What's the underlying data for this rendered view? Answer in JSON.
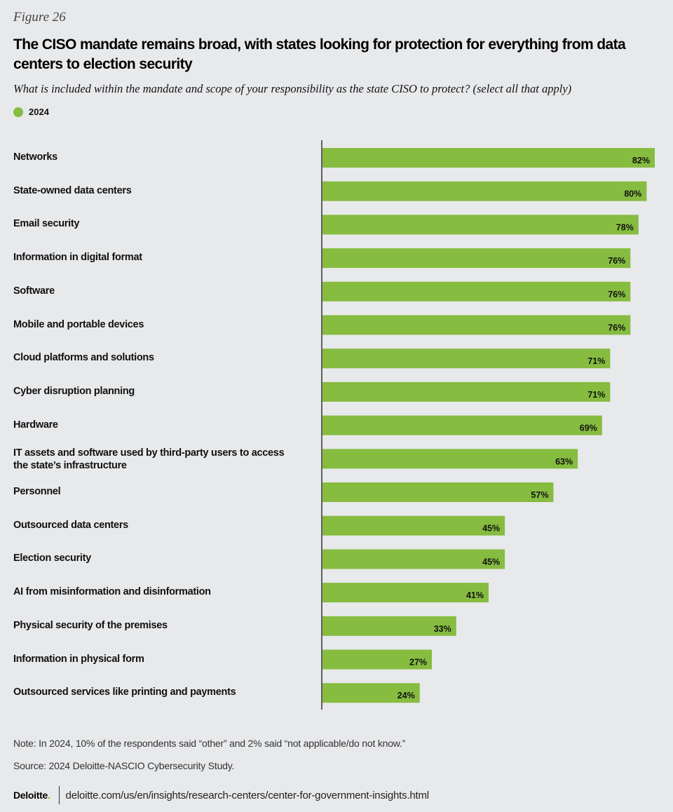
{
  "figure_label": "Figure 26",
  "footer": {
    "note": "Note: In 2024, 10% of the respondents said “other” and 2% said “not applicable/do not know.”",
    "source": "Source: 2024 Deloitte-NASCIO Cybersecurity Study.",
    "logo_text": "Deloitte",
    "logo_dot": ".",
    "url": "deloitte.com/us/en/insights/research-centers/center-for-government-insights.html"
  },
  "colors": {
    "bar": "#86bc40",
    "background": "#e8e9eb",
    "axis": "#333333"
  },
  "chart_data": {
    "type": "bar",
    "orientation": "horizontal",
    "title": "The CISO mandate remains broad, with states looking for protection for everything from data centers to election security",
    "subtitle": "What is included within the mandate and scope of your responsibility as the state CISO to protect? (select all that apply)",
    "xlabel": "",
    "ylabel": "",
    "xlim": [
      0,
      100
    ],
    "grid": false,
    "legend": {
      "placement": "top-left",
      "entries": [
        "2024"
      ]
    },
    "categories": [
      "Networks",
      "State-owned data centers",
      "Email security",
      "Information in digital format",
      "Software",
      "Mobile and portable devices",
      "Cloud platforms and solutions",
      "Cyber disruption planning",
      "Hardware",
      "IT assets and software used by third-party users to access the state’s infrastructure",
      "Personnel",
      "Outsourced data centers",
      "Election security",
      "AI from misinformation and disinformation",
      "Physical security of the premises",
      "Information in physical form",
      "Outsourced services like printing and payments"
    ],
    "series": [
      {
        "name": "2024",
        "color": "#86bc40",
        "values": [
          82,
          80,
          78,
          76,
          76,
          76,
          71,
          71,
          69,
          63,
          57,
          45,
          45,
          41,
          33,
          27,
          24
        ],
        "labels": [
          "82%",
          "80%",
          "78%",
          "76%",
          "76%",
          "76%",
          "71%",
          "71%",
          "69%",
          "63%",
          "57%",
          "45%",
          "45%",
          "41%",
          "33%",
          "27%",
          "24%"
        ]
      }
    ]
  }
}
